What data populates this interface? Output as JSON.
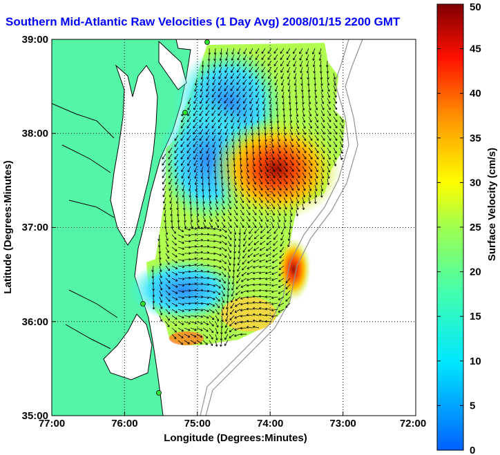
{
  "title": "Southern Mid-Atlantic Raw Velocities (1 Day Avg) 2008/01/15 2200 GMT",
  "map": {
    "xlabel": "Longitude (Degrees:Minutes)",
    "ylabel": "Latitude (Degrees:Minutes)",
    "xticks": [
      "77:00",
      "76:00",
      "75:00",
      "74:00",
      "73:00",
      "72:00"
    ],
    "yticks": [
      "39:00",
      "38:00",
      "37:00",
      "36:00",
      "35:00"
    ],
    "lon_range": [
      -77,
      -72
    ],
    "lat_range": [
      35,
      39
    ],
    "grid": true,
    "land_color": "#55f5a8",
    "water_color": "#ffffff",
    "station_color": "#30e030"
  },
  "colorbar": {
    "label": "Surface Velocity (cm/s)",
    "ticks": [
      "0",
      "5",
      "10",
      "15",
      "20",
      "25",
      "30",
      "35",
      "40",
      "45",
      "50"
    ],
    "range": [
      0,
      50
    ]
  }
}
